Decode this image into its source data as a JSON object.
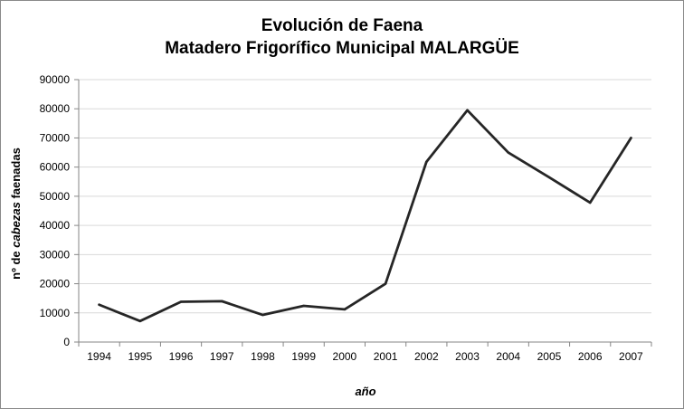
{
  "chart_data": {
    "type": "line",
    "title_line_1": "Evolución de Faena",
    "title_line_2": "Matadero Frigorífico Municipal MALARGÜE",
    "xlabel": "año",
    "ylabel_parts": [
      "nº de ",
      "cabezas",
      " faenadas"
    ],
    "categories": [
      "1994",
      "1995",
      "1996",
      "1997",
      "1998",
      "1999",
      "2000",
      "2001",
      "2002",
      "2003",
      "2004",
      "2005",
      "2006",
      "2007"
    ],
    "series": [
      {
        "values": [
          12800,
          7200,
          13800,
          14000,
          9300,
          12400,
          11200,
          20000,
          61800,
          79500,
          65000,
          56500,
          47800,
          70000
        ]
      }
    ],
    "ylim": [
      0,
      90000
    ],
    "yticks": [
      0,
      10000,
      20000,
      30000,
      40000,
      50000,
      60000,
      70000,
      80000,
      90000
    ],
    "grid": true,
    "legend": "none",
    "line_color": "#262626",
    "grid_color": "#d9d9d9"
  }
}
